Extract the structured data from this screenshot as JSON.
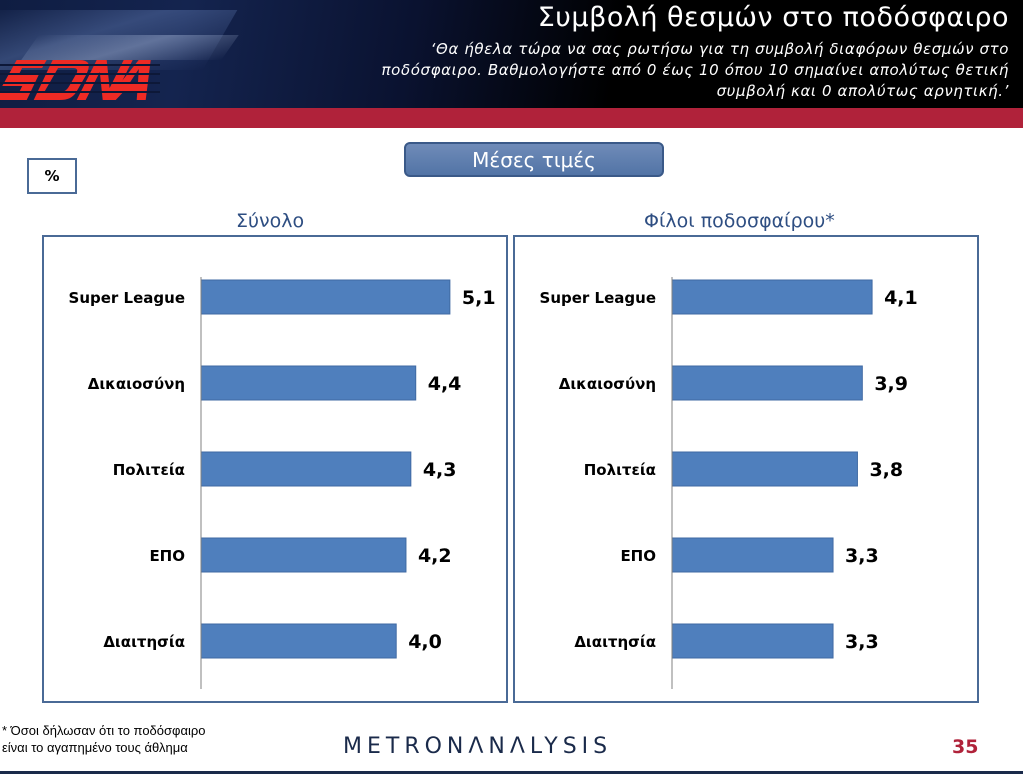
{
  "header": {
    "title": "Συμβολή θεσμών στο ποδόσφαιρο",
    "subtitle_lines": [
      "‘Θα ήθελα τώρα να σας ρωτήσω για τη συμβολή διαφόρων θεσμών στο",
      "ποδόσφαιρο. Βαθμολογήστε από 0 έως 10 όπου 10 σημαίνει απολύτως θετική",
      "συμβολή και 0 απολύτως αρνητική.’"
    ],
    "logo_text": "SDNA",
    "accent_color": "#b0223a"
  },
  "percent_label": "%",
  "mean_label": "Μέσες τιμές",
  "footnote_lines": [
    "* Όσοι δήλωσαν ότι το ποδόσφαιρο",
    "είναι το αγαπημένο τους άθλημα"
  ],
  "brand": "METRONΛNΛLYSIS",
  "page_number": "35",
  "chart_data": [
    {
      "type": "bar",
      "orientation": "horizontal",
      "title": "Σύνολο",
      "categories": [
        "Super League",
        "Δικαιοσύνη",
        "Πολιτεία",
        "ΕΠΟ",
        "Διαιτησία"
      ],
      "values": [
        5.1,
        4.4,
        4.3,
        4.2,
        4.0
      ],
      "value_labels": [
        "5,1",
        "4,4",
        "4,3",
        "4,2",
        "4,0"
      ],
      "bar_color": "#4f7fbd",
      "grid": false
    },
    {
      "type": "bar",
      "orientation": "horizontal",
      "title": "Φίλοι ποδοσφαίρου*",
      "categories": [
        "Super League",
        "Δικαιοσύνη",
        "Πολιτεία",
        "ΕΠΟ",
        "Διαιτησία"
      ],
      "values": [
        4.1,
        3.9,
        3.8,
        3.3,
        3.3
      ],
      "value_labels": [
        "4,1",
        "3,9",
        "3,8",
        "3,3",
        "3,3"
      ],
      "bar_color": "#4f7fbd",
      "grid": false
    }
  ]
}
